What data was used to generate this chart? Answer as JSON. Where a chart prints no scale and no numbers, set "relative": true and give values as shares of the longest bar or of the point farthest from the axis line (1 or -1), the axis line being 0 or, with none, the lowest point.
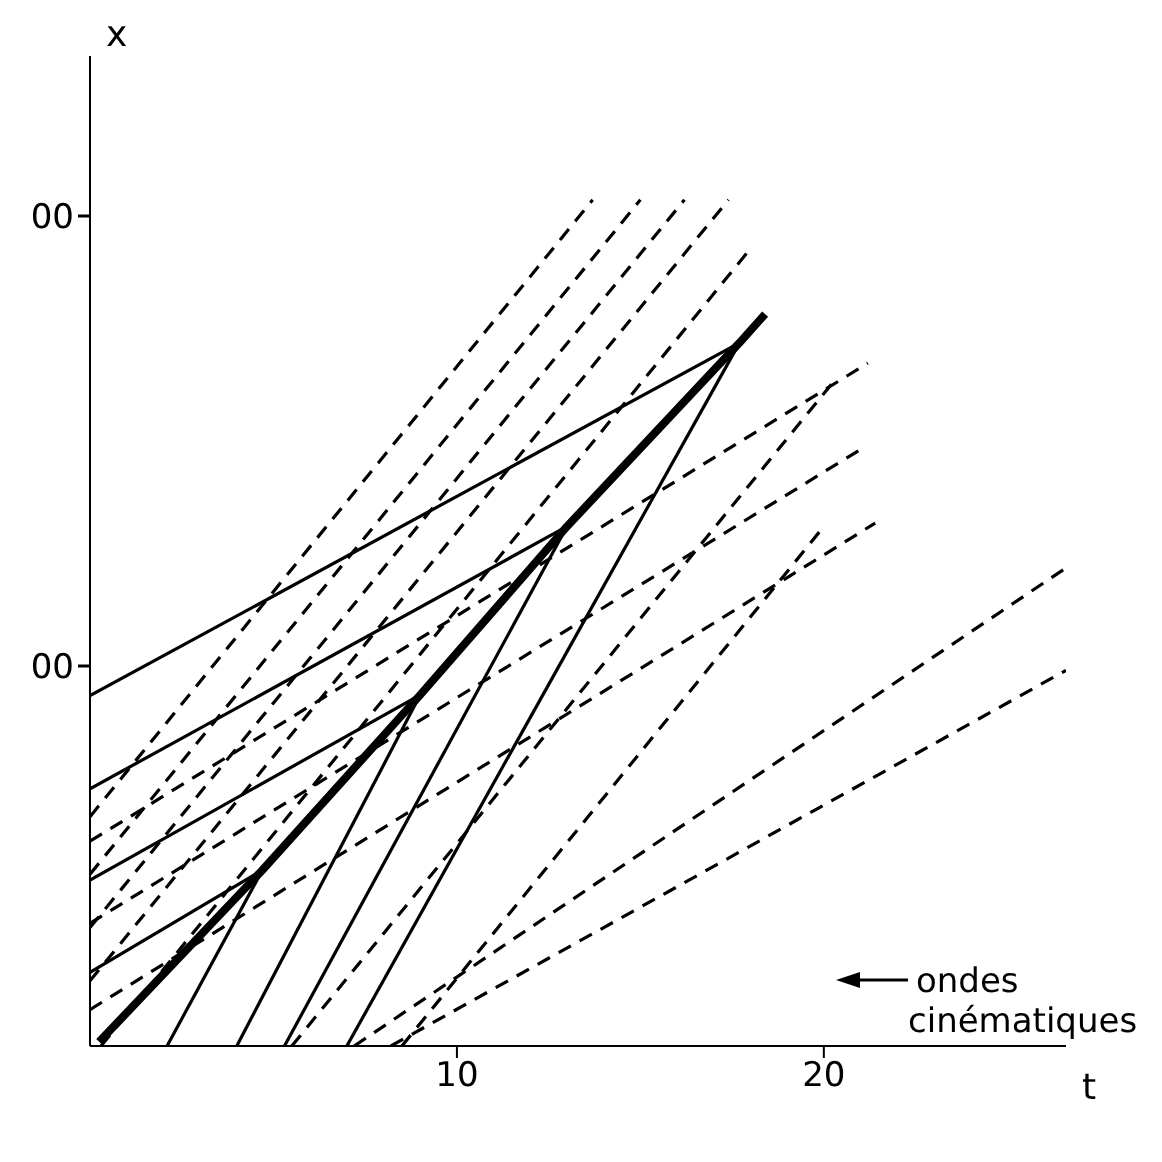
{
  "chart_data": {
    "type": "line",
    "xlabel": "t",
    "ylabel": "x",
    "xlim": [
      0,
      26.6
    ],
    "xticks": [
      10,
      20
    ],
    "relative": true,
    "marker": "none",
    "series": [
      {
        "color": "#000000",
        "line_style": "solid",
        "x": [
          0.25,
          4.7,
          9.0,
          13.0,
          17.7,
          18.4
        ],
        "values": [
          0.005,
          0.208,
          0.415,
          0.614,
          0.831,
          0.865
        ]
      },
      {
        "color": "#000000",
        "line_style": "solid",
        "x": [
          0,
          4.7
        ],
        "values": [
          0.087,
          0.208
        ]
      },
      {
        "color": "#000000",
        "line_style": "solid",
        "x": [
          0,
          9.0
        ],
        "values": [
          0.196,
          0.415
        ]
      },
      {
        "color": "#000000",
        "line_style": "solid",
        "x": [
          0,
          13.0
        ],
        "values": [
          0.304,
          0.614
        ]
      },
      {
        "color": "#000000",
        "line_style": "solid",
        "x": [
          0,
          17.7
        ],
        "values": [
          0.414,
          0.831
        ]
      },
      {
        "color": "#000000",
        "line_style": "solid",
        "x": [
          2.1,
          4.7
        ],
        "values": [
          0,
          0.208
        ]
      },
      {
        "color": "#000000",
        "line_style": "solid",
        "x": [
          4.0,
          9.0
        ],
        "values": [
          0,
          0.415
        ]
      },
      {
        "color": "#000000",
        "line_style": "solid",
        "x": [
          5.3,
          13.0
        ],
        "values": [
          0,
          0.614
        ]
      },
      {
        "color": "#000000",
        "line_style": "solid",
        "x": [
          7.0,
          17.7
        ],
        "values": [
          0,
          0.831
        ]
      },
      {
        "color": "#000000",
        "line_style": "dashed",
        "x": [
          0,
          13.7
        ],
        "values": [
          0.271,
          1
        ]
      },
      {
        "color": "#000000",
        "line_style": "dashed",
        "x": [
          0,
          15.0
        ],
        "values": [
          0.203,
          1
        ]
      },
      {
        "color": "#000000",
        "line_style": "dashed",
        "x": [
          0,
          16.2
        ],
        "values": [
          0.14,
          1
        ]
      },
      {
        "color": "#000000",
        "line_style": "dashed",
        "x": [
          0,
          17.4
        ],
        "values": [
          0.077,
          1
        ]
      },
      {
        "color": "#000000",
        "line_style": "dashed",
        "x": [
          0.3,
          17.9
        ],
        "values": [
          0,
          0.937
        ]
      },
      {
        "color": "#000000",
        "line_style": "dashed",
        "x": [
          5.5,
          20.3
        ],
        "values": [
          0,
          0.787
        ]
      },
      {
        "color": "#000000",
        "line_style": "dashed",
        "x": [
          8.5,
          20.0
        ],
        "values": [
          0,
          0.614
        ]
      },
      {
        "color": "#000000",
        "line_style": "dashed",
        "x": [
          0,
          21.4
        ],
        "values": [
          0.043,
          0.618
        ]
      },
      {
        "color": "#000000",
        "line_style": "dashed",
        "x": [
          0,
          21.0
        ],
        "values": [
          0.145,
          0.705
        ]
      },
      {
        "color": "#000000",
        "line_style": "dashed",
        "x": [
          0,
          21.2
        ],
        "values": [
          0.242,
          0.807
        ]
      },
      {
        "color": "#000000",
        "line_style": "dashed",
        "x": [
          7.2,
          26.6
        ],
        "values": [
          0,
          0.565
        ]
      },
      {
        "color": "#000000",
        "line_style": "dashed",
        "x": [
          8.2,
          26.6
        ],
        "values": [
          0,
          0.444
        ]
      }
    ],
    "annotations": [
      "ondes cinématiques",
      "00",
      "00"
    ]
  }
}
